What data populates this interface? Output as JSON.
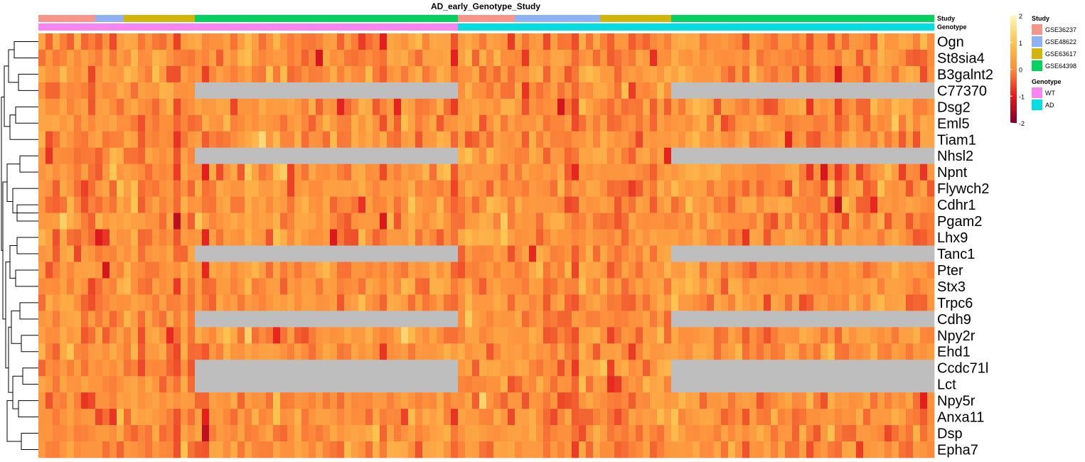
{
  "chart_data": {
    "type": "heatmap",
    "title": "AD_early_Genotype_Study",
    "rows": [
      "Ogn",
      "St8sia4",
      "B3galnt2",
      "C77370",
      "Dsg2",
      "Eml5",
      "Tiam1",
      "Nhsl2",
      "Npnt",
      "Flywch2",
      "Cdhr1",
      "Pgam2",
      "Lhx9",
      "Tanc1",
      "Pter",
      "Stx3",
      "Trpc6",
      "Cdh9",
      "Npy2r",
      "Ehd1",
      "Ccdc71l",
      "Lct",
      "Npy5r",
      "Anxa11",
      "Dsp",
      "Epha7"
    ],
    "n_samples": 126,
    "column_annotations": [
      {
        "name": "Study",
        "segments": [
          {
            "value": "GSE36237",
            "count": 8
          },
          {
            "value": "GSE48622",
            "count": 4
          },
          {
            "value": "GSE63617",
            "count": 10
          },
          {
            "value": "GSE64398",
            "count": 37
          },
          {
            "value": "GSE36237",
            "count": 8
          },
          {
            "value": "GSE48622",
            "count": 12
          },
          {
            "value": "GSE63617",
            "count": 10
          },
          {
            "value": "GSE64398",
            "count": 37
          }
        ]
      },
      {
        "name": "Genotype",
        "segments": [
          {
            "value": "WT",
            "count": 59
          },
          {
            "value": "AD",
            "count": 67
          }
        ]
      }
    ],
    "missing_rows": [
      "C77370",
      "Nhsl2",
      "Tanc1",
      "Cdh9",
      "Ccdc71l",
      "Lct"
    ],
    "missing_studies": [
      "GSE64398"
    ],
    "scale": {
      "min": -2,
      "max": 2,
      "ticks": [
        2,
        1,
        0,
        -1,
        -2
      ]
    },
    "colormap": [
      "#fff7bc",
      "#fec44f",
      "#fd8d3c",
      "#e31a1c",
      "#800026"
    ],
    "na_color": "#bebebe",
    "row_dendrogram": true
  },
  "legend": {
    "study": {
      "title": "Study",
      "items": [
        {
          "label": "GSE36237",
          "color": "#f8958b"
        },
        {
          "label": "GSE48622",
          "color": "#8fb2f4"
        },
        {
          "label": "GSE63617",
          "color": "#d3b40a"
        },
        {
          "label": "GSE64398",
          "color": "#05d160"
        }
      ]
    },
    "genotype": {
      "title": "Genotype",
      "items": [
        {
          "label": "WT",
          "color": "#f985f2"
        },
        {
          "label": "AD",
          "color": "#04dde2"
        }
      ]
    }
  }
}
